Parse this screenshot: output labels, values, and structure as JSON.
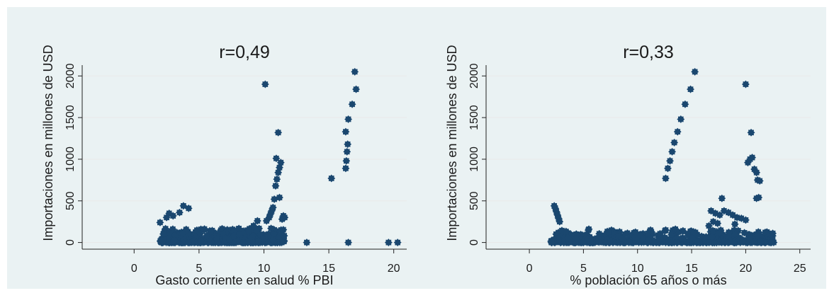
{
  "chart_data": [
    {
      "type": "scatter",
      "title": "r=0,49",
      "xlabel": "Gasto corriente en salud % PBI",
      "ylabel": "Importaciones en millones de USD",
      "xlim": [
        -4,
        21
      ],
      "ylim": [
        -80,
        2130
      ],
      "xticks": [
        0,
        5,
        10,
        15,
        20
      ],
      "yticks": [
        0,
        500,
        1000,
        1500,
        2000
      ],
      "grid": true,
      "marker_color": "#1a476f",
      "series": [
        {
          "points": [
            [
              2.0,
              240
            ],
            [
              2.5,
              300
            ],
            [
              2.7,
              350
            ],
            [
              3.0,
              320
            ],
            [
              3.5,
              360
            ],
            [
              3.8,
              440
            ],
            [
              4.2,
              410
            ],
            [
              10.1,
              1900
            ],
            [
              10.2,
              260
            ],
            [
              10.4,
              300
            ],
            [
              10.5,
              340
            ],
            [
              10.6,
              380
            ],
            [
              10.7,
              420
            ],
            [
              10.8,
              520
            ],
            [
              10.9,
              680
            ],
            [
              11.0,
              760
            ],
            [
              11.1,
              840
            ],
            [
              11.2,
              900
            ],
            [
              11.3,
              960
            ],
            [
              10.95,
              1010
            ],
            [
              11.1,
              1320
            ],
            [
              11.2,
              540
            ],
            [
              11.5,
              320
            ],
            [
              11.4,
              280
            ],
            [
              11.6,
              300
            ],
            [
              9.5,
              260
            ],
            [
              9.2,
              200
            ],
            [
              15.2,
              770
            ],
            [
              16.3,
              890
            ],
            [
              16.35,
              980
            ],
            [
              16.4,
              1090
            ],
            [
              16.45,
              1180
            ],
            [
              16.3,
              1330
            ],
            [
              16.5,
              1480
            ],
            [
              16.8,
              1660
            ],
            [
              17.1,
              1840
            ],
            [
              17.0,
              2050
            ],
            [
              13.3,
              0
            ],
            [
              16.5,
              0
            ],
            [
              19.6,
              0
            ],
            [
              20.3,
              0
            ]
          ],
          "cluster": {
            "x_range": [
              2.0,
              11.6
            ],
            "y_max": 170,
            "count": 520
          }
        }
      ]
    },
    {
      "type": "scatter",
      "title": "r=0,33",
      "xlabel": "% población 65 años o más",
      "ylabel": "Importaciones en millones de USD",
      "xlim": [
        -4,
        26
      ],
      "ylim": [
        -80,
        2130
      ],
      "xticks": [
        0,
        5,
        10,
        15,
        20,
        25
      ],
      "yticks": [
        0,
        500,
        1000,
        1500,
        2000
      ],
      "grid": true,
      "marker_color": "#1a476f",
      "series": [
        {
          "points": [
            [
              2.3,
              440
            ],
            [
              2.4,
              410
            ],
            [
              2.5,
              370
            ],
            [
              2.6,
              330
            ],
            [
              2.7,
              290
            ],
            [
              2.8,
              250
            ],
            [
              12.6,
              770
            ],
            [
              12.8,
              890
            ],
            [
              13.0,
              980
            ],
            [
              13.2,
              1090
            ],
            [
              13.4,
              1200
            ],
            [
              13.7,
              1330
            ],
            [
              14.0,
              1480
            ],
            [
              14.4,
              1660
            ],
            [
              14.9,
              1840
            ],
            [
              15.3,
              2050
            ],
            [
              20.0,
              1900
            ],
            [
              20.2,
              960
            ],
            [
              20.4,
              1000
            ],
            [
              20.5,
              1320
            ],
            [
              20.6,
              1020
            ],
            [
              20.8,
              880
            ],
            [
              21.0,
              840
            ],
            [
              21.1,
              750
            ],
            [
              21.3,
              740
            ],
            [
              21.2,
              540
            ],
            [
              21.0,
              530
            ],
            [
              16.8,
              380
            ],
            [
              17.2,
              350
            ],
            [
              17.6,
              330
            ],
            [
              17.8,
              530
            ],
            [
              18.0,
              380
            ],
            [
              18.4,
              360
            ],
            [
              18.8,
              330
            ],
            [
              19.2,
              300
            ],
            [
              19.6,
              290
            ],
            [
              20.0,
              270
            ],
            [
              17.0,
              250
            ],
            [
              17.4,
              230
            ],
            [
              16.6,
              200
            ],
            [
              19.0,
              220
            ],
            [
              13.5,
              160
            ],
            [
              14.2,
              140
            ],
            [
              11.0,
              110
            ],
            [
              5.5,
              160
            ],
            [
              21.8,
              120
            ],
            [
              22.2,
              100
            ],
            [
              22.5,
              110
            ]
          ],
          "cluster": {
            "x_range": [
              2.0,
              22.6
            ],
            "y_max": 150,
            "count": 560
          }
        }
      ]
    }
  ]
}
